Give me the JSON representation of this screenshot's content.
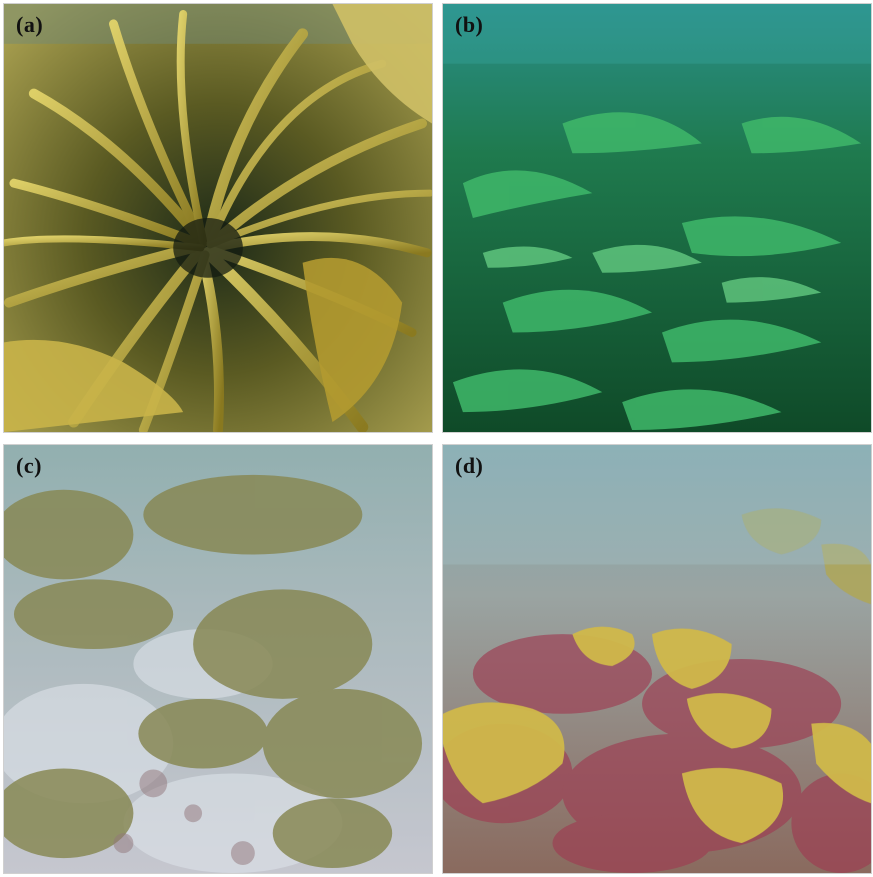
{
  "panels": [
    {
      "label": "(a)",
      "scene": "kelp-canopy-closeup",
      "dominant_color": "#b9a53a"
    },
    {
      "label": "(b)",
      "scene": "green-algae-turf",
      "dominant_color": "#2f9a5c"
    },
    {
      "label": "(c)",
      "scene": "sparse-kelp-over-sand",
      "dominant_color": "#8fa2a0"
    },
    {
      "label": "(d)",
      "scene": "red-and-yellow-algae-reef",
      "dominant_color": "#a98870"
    }
  ]
}
